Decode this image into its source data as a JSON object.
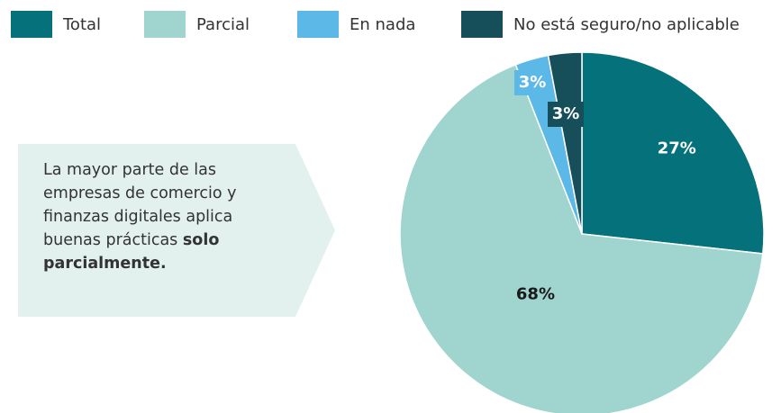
{
  "chart_data": {
    "type": "pie",
    "categories": [
      "Total",
      "Parcial",
      "En nada",
      "No está seguro/no aplicable"
    ],
    "values": [
      27,
      68,
      3,
      3
    ],
    "value_labels": [
      "27%",
      "68%",
      "3%",
      "3%"
    ],
    "colors": [
      "#05717a",
      "#9fd4cf",
      "#5cb8e6",
      "#164e5a"
    ],
    "label_colors": [
      "#ffffff",
      "#1a1a1a",
      "#ffffff",
      "#ffffff"
    ],
    "annotation": {
      "text": "La mayor parte de las empresas de comercio y finanzas digitales aplica buenas prácticas ",
      "emphasis": "solo parcialmente."
    }
  }
}
